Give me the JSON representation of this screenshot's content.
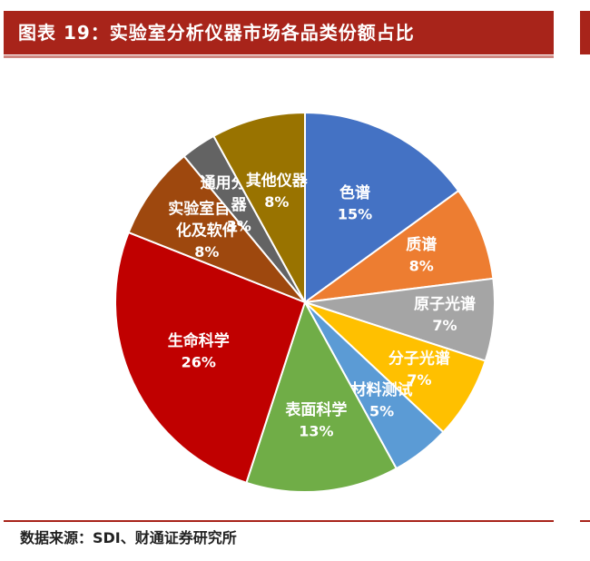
{
  "header": {
    "title": "图表 19：实验室分析仪器市场各品类份额占比"
  },
  "footer": {
    "source": "数据来源：SDI、财通证券研究所"
  },
  "chart_data": {
    "type": "pie",
    "title": "",
    "slices": [
      {
        "label_lines": [
          "色谱"
        ],
        "value": 15,
        "value_label": "15%",
        "color": "#4472c4"
      },
      {
        "label_lines": [
          "质谱"
        ],
        "value": 8,
        "value_label": "8%",
        "color": "#ed7d31"
      },
      {
        "label_lines": [
          "原子光谱"
        ],
        "value": 7,
        "value_label": "7%",
        "color": "#a5a5a5"
      },
      {
        "label_lines": [
          "分子光谱"
        ],
        "value": 7,
        "value_label": "7%",
        "color": "#ffc000"
      },
      {
        "label_lines": [
          "材料测试"
        ],
        "value": 5,
        "value_label": "5%",
        "color": "#5b9bd5"
      },
      {
        "label_lines": [
          "表面科学"
        ],
        "value": 13,
        "value_label": "13%",
        "color": "#70ad47"
      },
      {
        "label_lines": [
          "生命科学"
        ],
        "value": 26,
        "value_label": "26%",
        "color": "#c00000"
      },
      {
        "label_lines": [
          "实验室自动",
          "化及软件"
        ],
        "value": 8,
        "value_label": "8%",
        "color": "#9e480e"
      },
      {
        "label_lines": [
          "通用分析仪",
          "器"
        ],
        "value": 3,
        "value_label": "3%",
        "color": "#636363"
      },
      {
        "label_lines": [
          "其他仪器"
        ],
        "value": 8,
        "value_label": "8%",
        "color": "#997300"
      }
    ],
    "start_angle_deg": 0,
    "direction": "clockwise",
    "legend": "none"
  }
}
